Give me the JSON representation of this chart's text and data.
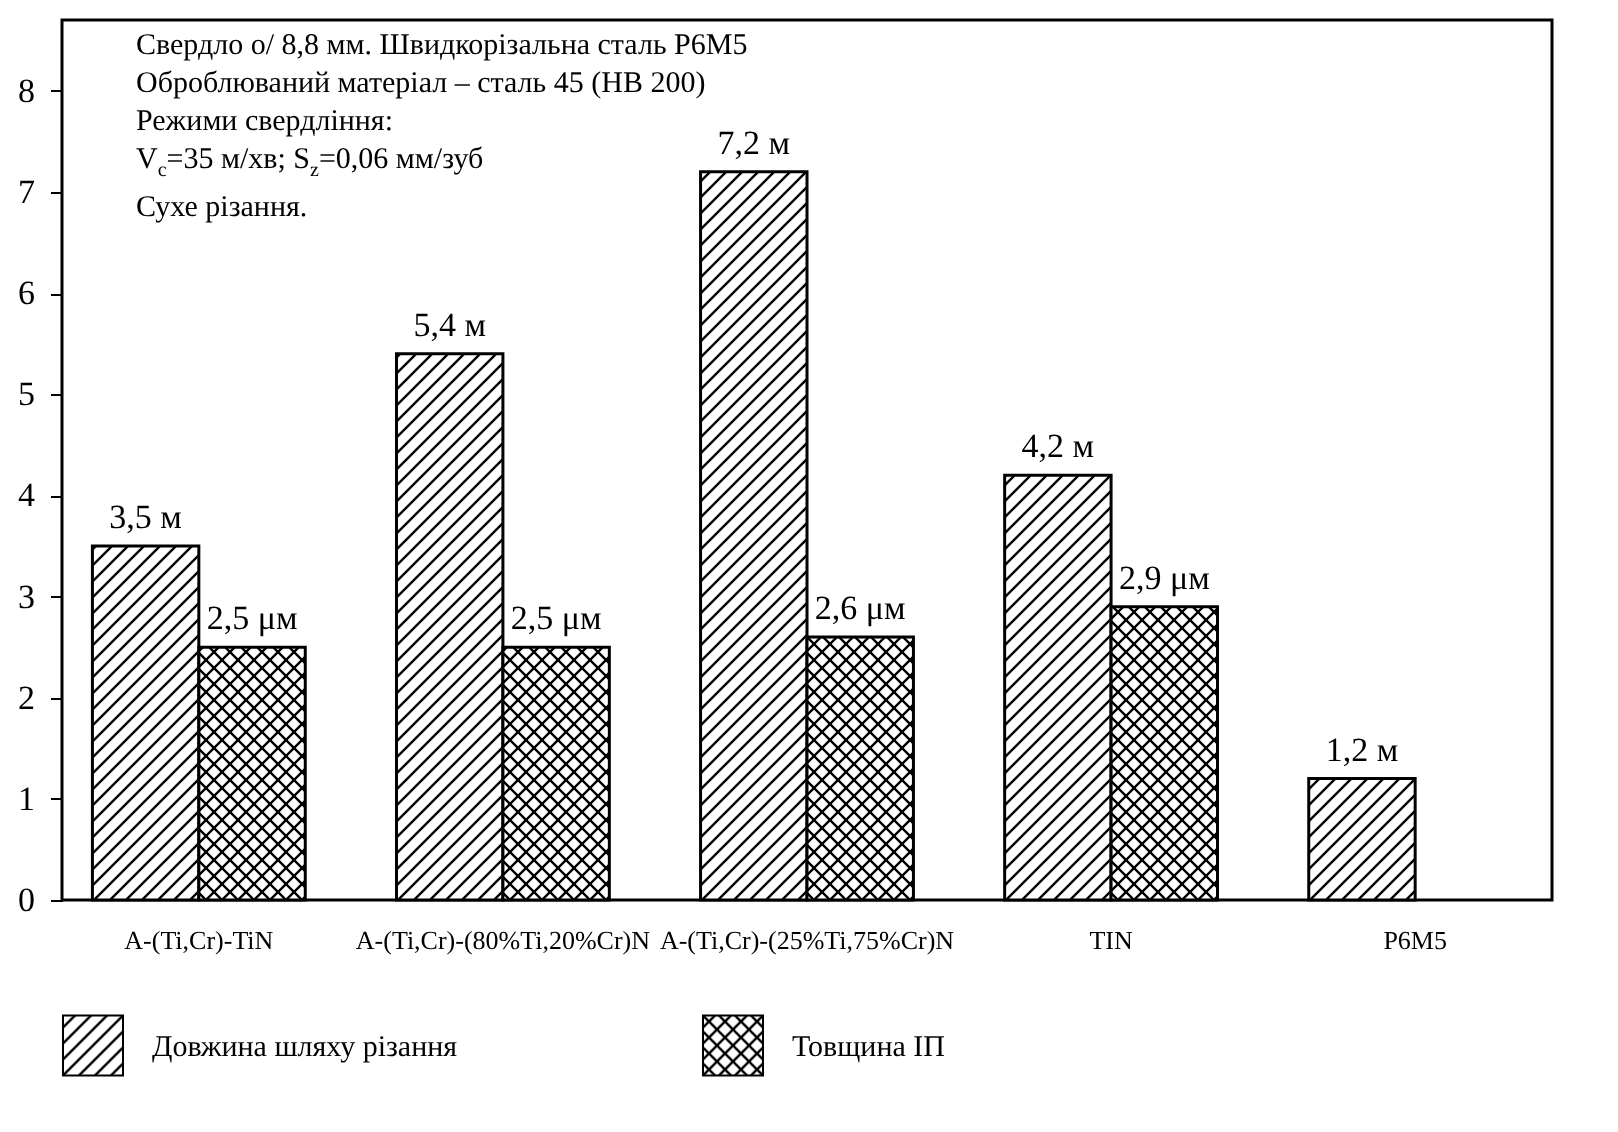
{
  "chart_data": {
    "type": "bar",
    "title": "Свердло о/ 8,8 мм. Швидкорізальна сталь Р6М5",
    "annotations": [
      "Оброблюваний матеріал – сталь 45 (НВ 200)",
      "Режими свердління:",
      "V$_{c}$=35 м/хв; S$_{z}$=0,06 мм/зуб",
      "Сухе різання."
    ],
    "categories": [
      "А-(Ti,Cr)-TiN",
      "А-(Ti,Cr)-(80%Ti,20%Cr)N",
      "А-(Ti,Cr)-(25%Ti,75%Cr)N",
      "TIN",
      "Р6М5"
    ],
    "series": [
      {
        "name": "Довжина шляху різання",
        "color": "#000000",
        "values": [
          3.5,
          5.4,
          7.2,
          4.2,
          1.2
        ],
        "value_labels": [
          "3,5 м",
          "5,4 м",
          "7,2 м",
          "4,2 м",
          "1,2 м"
        ]
      },
      {
        "name": "Товщина ІП",
        "color": "#000000",
        "values": [
          2.5,
          2.5,
          2.6,
          2.9,
          null
        ],
        "value_labels": [
          "2,5 μм",
          "2,5 μм",
          "2,6 μм",
          "2,9 μм",
          null
        ]
      }
    ],
    "ylim": [
      0,
      8.7
    ],
    "yticks": [
      0,
      1,
      2,
      3,
      4,
      5,
      6,
      7,
      8
    ],
    "grid": false,
    "legend": "bottom"
  }
}
